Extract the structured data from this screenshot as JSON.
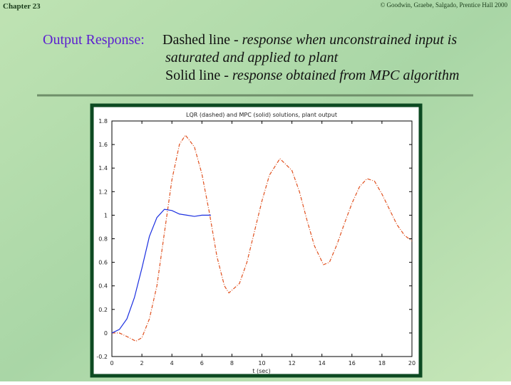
{
  "header": {
    "chapter": "Chapter 23",
    "copyright": "© Goodwin, Graebe, Salgado, Prentice Hall 2000"
  },
  "slide": {
    "label": "Output Response:",
    "lines": [
      {
        "term": "Dashed line",
        "description": "- response when unconstrained  input is",
        "continuation": "saturated and applied to plant"
      },
      {
        "term": "Solid line",
        "description": "- response obtained from MPC algorithm"
      }
    ]
  },
  "chart_data": {
    "type": "line",
    "title": "LQR (dashed) and MPC (solid) solutions, plant output",
    "xlabel": "t (sec)",
    "xlim": [
      0,
      20
    ],
    "xticks": [
      0,
      2,
      4,
      6,
      8,
      10,
      12,
      14,
      16,
      18,
      20
    ],
    "ylim": [
      -0.2,
      1.8
    ],
    "yticks": [
      -0.2,
      0,
      0.2,
      0.4,
      0.6,
      0.8,
      1,
      1.2,
      1.4,
      1.6,
      1.8
    ],
    "series": [
      {
        "name": "LQR",
        "color": "#e0501e",
        "dash": true,
        "x": [
          0,
          0.5,
          1,
          1.6,
          2,
          2.5,
          3,
          3.5,
          4,
          4.5,
          4.9,
          5.5,
          6,
          6.5,
          7,
          7.5,
          7.8,
          8.5,
          9,
          9.5,
          10,
          10.5,
          11.2,
          12,
          12.5,
          13,
          13.5,
          14.1,
          14.5,
          15,
          15.5,
          16,
          16.5,
          17,
          17.5,
          18,
          18.5,
          19,
          19.5,
          20
        ],
        "values": [
          0,
          0,
          -0.03,
          -0.07,
          -0.04,
          0.12,
          0.4,
          0.85,
          1.3,
          1.6,
          1.68,
          1.58,
          1.35,
          1.02,
          0.65,
          0.4,
          0.34,
          0.42,
          0.6,
          0.86,
          1.12,
          1.34,
          1.48,
          1.38,
          1.2,
          0.96,
          0.74,
          0.58,
          0.6,
          0.75,
          0.93,
          1.1,
          1.24,
          1.31,
          1.29,
          1.18,
          1.05,
          0.92,
          0.83,
          0.78
        ]
      },
      {
        "name": "MPC",
        "color": "#1a2ee0",
        "dash": false,
        "x": [
          0,
          0.5,
          1,
          1.5,
          2,
          2.5,
          3,
          3.5,
          4,
          4.5,
          5,
          5.5,
          6,
          6.6
        ],
        "values": [
          0,
          0.03,
          0.12,
          0.3,
          0.55,
          0.82,
          0.98,
          1.05,
          1.04,
          1.01,
          1,
          0.99,
          1,
          1
        ]
      }
    ]
  }
}
